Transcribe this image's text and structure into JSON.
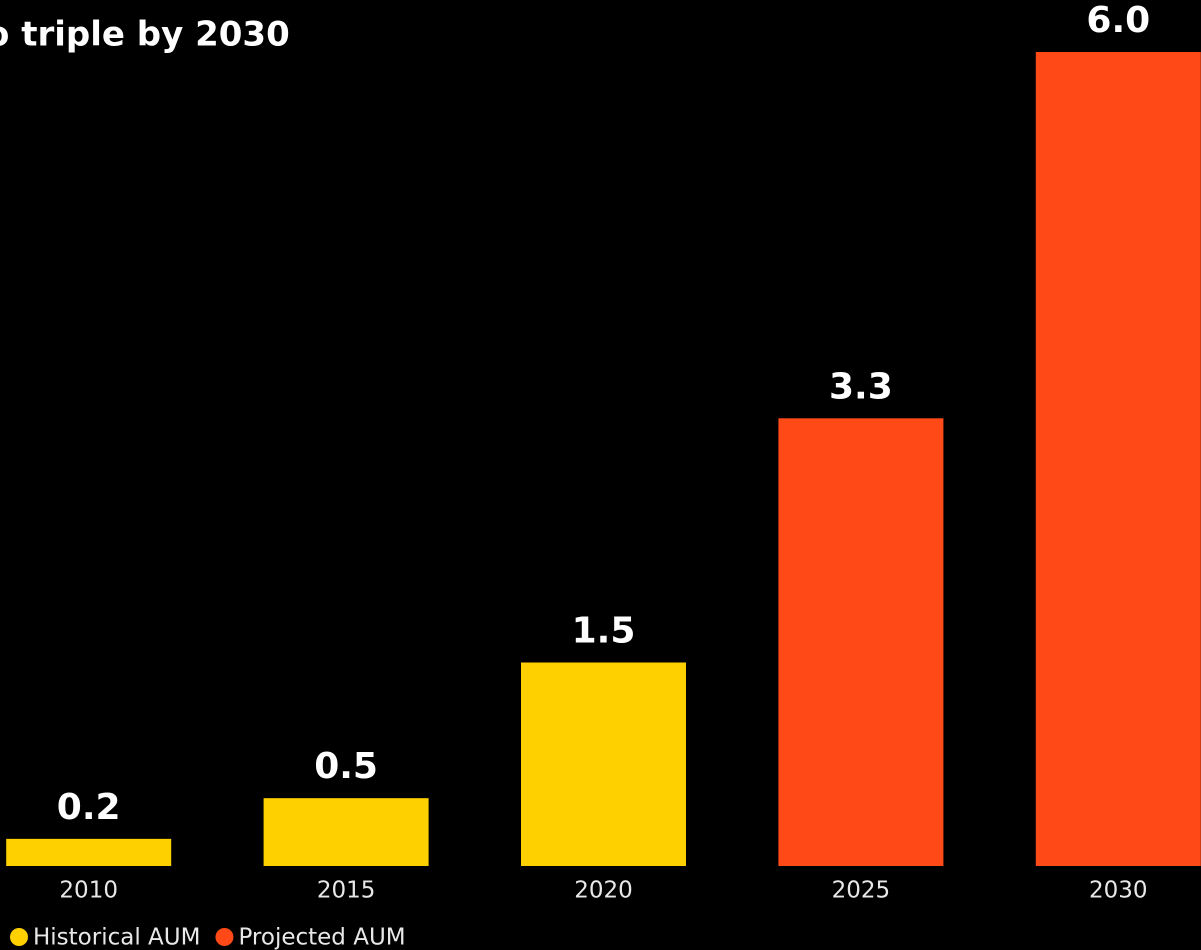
{
  "chart_data": {
    "type": "bar",
    "title": "o triple by 2030",
    "categories": [
      "2010",
      "2015",
      "2020",
      "2025",
      "2030"
    ],
    "series": [
      {
        "name": "Historical AUM",
        "color": "#ffd000",
        "values": [
          0.2,
          0.5,
          1.5,
          null,
          null
        ],
        "value_labels": [
          "0.2",
          "0.5",
          "1.5",
          null,
          null
        ]
      },
      {
        "name": "Projected AUM",
        "color": "#ff4a17",
        "values": [
          null,
          null,
          null,
          3.3,
          6
        ],
        "value_labels": [
          null,
          null,
          null,
          "3.3",
          "6.0"
        ]
      }
    ],
    "ylim": [
      0,
      6
    ],
    "legend": "bottom-left"
  }
}
